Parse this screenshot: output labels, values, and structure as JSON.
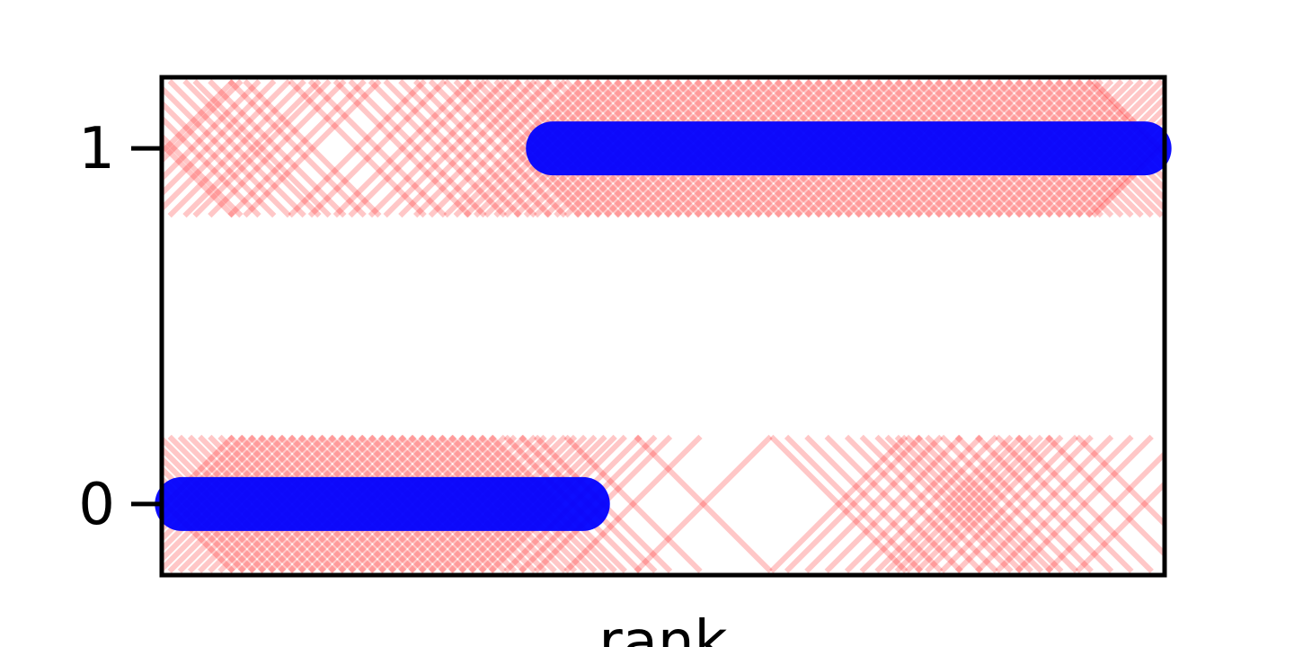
{
  "chart_data": {
    "type": "scatter",
    "title": "",
    "xlabel": "rank",
    "ylabel": "",
    "xlim": [
      0,
      1
    ],
    "ylim": [
      -0.2,
      1.2
    ],
    "yticks": [
      0,
      1
    ],
    "xticks": [],
    "grid": false,
    "legend": "none",
    "colors": {
      "samples": "#ff0000",
      "step": "#0000ff"
    },
    "series": [
      {
        "marker": "x",
        "points": [
          {
            "x": 0.004,
            "y": 1
          },
          {
            "x": 0.012,
            "y": 1
          },
          {
            "x": 0.03,
            "y": 1
          },
          {
            "x": 0.045,
            "y": 1
          },
          {
            "x": 0.06,
            "y": 1
          },
          {
            "x": 0.075,
            "y": 1
          },
          {
            "x": 0.09,
            "y": 1
          },
          {
            "x": 0.1,
            "y": 1
          },
          {
            "x": 0.115,
            "y": 1
          },
          {
            "x": 0.135,
            "y": 1
          },
          {
            "x": 0.15,
            "y": 1
          },
          {
            "x": 0.195,
            "y": 1
          },
          {
            "x": 0.215,
            "y": 1
          },
          {
            "x": 0.24,
            "y": 1
          },
          {
            "x": 0.255,
            "y": 1
          },
          {
            "x": 0.275,
            "y": 1
          },
          {
            "x": 0.29,
            "y": 1
          },
          {
            "x": 0.305,
            "y": 1
          },
          {
            "x": 0.32,
            "y": 1
          },
          {
            "x": 0.335,
            "y": 1
          },
          {
            "x": 0.35,
            "y": 1
          },
          {
            "x": 0.36,
            "y": 1
          },
          {
            "x": 0.37,
            "y": 1
          },
          {
            "x": 0.38,
            "y": 1
          },
          {
            "x": 0.39,
            "y": 1
          },
          {
            "x": 0.4,
            "y": 1
          },
          {
            "x": 0.41,
            "y": 1
          },
          {
            "x": 0.42,
            "y": 1
          },
          {
            "x": 0.43,
            "y": 1
          },
          {
            "x": 0.44,
            "y": 1
          },
          {
            "x": 0.45,
            "y": 1
          },
          {
            "x": 0.46,
            "y": 1
          },
          {
            "x": 0.47,
            "y": 1
          },
          {
            "x": 0.48,
            "y": 1
          },
          {
            "x": 0.49,
            "y": 1
          },
          {
            "x": 0.5,
            "y": 1
          },
          {
            "x": 0.51,
            "y": 1
          },
          {
            "x": 0.52,
            "y": 1
          },
          {
            "x": 0.53,
            "y": 1
          },
          {
            "x": 0.54,
            "y": 1
          },
          {
            "x": 0.55,
            "y": 1
          },
          {
            "x": 0.56,
            "y": 1
          },
          {
            "x": 0.57,
            "y": 1
          },
          {
            "x": 0.58,
            "y": 1
          },
          {
            "x": 0.59,
            "y": 1
          },
          {
            "x": 0.6,
            "y": 1
          },
          {
            "x": 0.61,
            "y": 1
          },
          {
            "x": 0.62,
            "y": 1
          },
          {
            "x": 0.63,
            "y": 1
          },
          {
            "x": 0.64,
            "y": 1
          },
          {
            "x": 0.65,
            "y": 1
          },
          {
            "x": 0.66,
            "y": 1
          },
          {
            "x": 0.67,
            "y": 1
          },
          {
            "x": 0.68,
            "y": 1
          },
          {
            "x": 0.69,
            "y": 1
          },
          {
            "x": 0.7,
            "y": 1
          },
          {
            "x": 0.71,
            "y": 1
          },
          {
            "x": 0.72,
            "y": 1
          },
          {
            "x": 0.73,
            "y": 1
          },
          {
            "x": 0.74,
            "y": 1
          },
          {
            "x": 0.75,
            "y": 1
          },
          {
            "x": 0.76,
            "y": 1
          },
          {
            "x": 0.77,
            "y": 1
          },
          {
            "x": 0.78,
            "y": 1
          },
          {
            "x": 0.79,
            "y": 1
          },
          {
            "x": 0.8,
            "y": 1
          },
          {
            "x": 0.81,
            "y": 1
          },
          {
            "x": 0.82,
            "y": 1
          },
          {
            "x": 0.83,
            "y": 1
          },
          {
            "x": 0.84,
            "y": 1
          },
          {
            "x": 0.85,
            "y": 1
          },
          {
            "x": 0.86,
            "y": 1
          },
          {
            "x": 0.87,
            "y": 1
          },
          {
            "x": 0.88,
            "y": 1
          },
          {
            "x": 0.89,
            "y": 1
          },
          {
            "x": 0.9,
            "y": 1
          },
          {
            "x": 0.91,
            "y": 1
          },
          {
            "x": 0.92,
            "y": 1
          },
          {
            "x": 0.93,
            "y": 1
          },
          {
            "x": 0.94,
            "y": 1
          },
          {
            "x": 0.95,
            "y": 1
          },
          {
            "x": 0.96,
            "y": 1
          },
          {
            "x": 0.97,
            "y": 1
          },
          {
            "x": 0.98,
            "y": 1
          },
          {
            "x": 0.99,
            "y": 1
          },
          {
            "x": 0.996,
            "y": 1
          },
          {
            "x": 0.004,
            "y": 0
          },
          {
            "x": 0.015,
            "y": 0
          },
          {
            "x": 0.025,
            "y": 0
          },
          {
            "x": 0.035,
            "y": 0
          },
          {
            "x": 0.045,
            "y": 0
          },
          {
            "x": 0.055,
            "y": 0
          },
          {
            "x": 0.065,
            "y": 0
          },
          {
            "x": 0.075,
            "y": 0
          },
          {
            "x": 0.085,
            "y": 0
          },
          {
            "x": 0.095,
            "y": 0
          },
          {
            "x": 0.105,
            "y": 0
          },
          {
            "x": 0.115,
            "y": 0
          },
          {
            "x": 0.125,
            "y": 0
          },
          {
            "x": 0.135,
            "y": 0
          },
          {
            "x": 0.145,
            "y": 0
          },
          {
            "x": 0.155,
            "y": 0
          },
          {
            "x": 0.165,
            "y": 0
          },
          {
            "x": 0.175,
            "y": 0
          },
          {
            "x": 0.185,
            "y": 0
          },
          {
            "x": 0.195,
            "y": 0
          },
          {
            "x": 0.205,
            "y": 0
          },
          {
            "x": 0.215,
            "y": 0
          },
          {
            "x": 0.225,
            "y": 0
          },
          {
            "x": 0.235,
            "y": 0
          },
          {
            "x": 0.245,
            "y": 0
          },
          {
            "x": 0.255,
            "y": 0
          },
          {
            "x": 0.265,
            "y": 0
          },
          {
            "x": 0.275,
            "y": 0
          },
          {
            "x": 0.285,
            "y": 0
          },
          {
            "x": 0.295,
            "y": 0
          },
          {
            "x": 0.305,
            "y": 0
          },
          {
            "x": 0.315,
            "y": 0
          },
          {
            "x": 0.325,
            "y": 0
          },
          {
            "x": 0.335,
            "y": 0
          },
          {
            "x": 0.345,
            "y": 0
          },
          {
            "x": 0.355,
            "y": 0
          },
          {
            "x": 0.365,
            "y": 0
          },
          {
            "x": 0.375,
            "y": 0
          },
          {
            "x": 0.385,
            "y": 0
          },
          {
            "x": 0.395,
            "y": 0
          },
          {
            "x": 0.41,
            "y": 0
          },
          {
            "x": 0.425,
            "y": 0
          },
          {
            "x": 0.44,
            "y": 0
          },
          {
            "x": 0.47,
            "y": 0
          },
          {
            "x": 0.54,
            "y": 0
          },
          {
            "x": 0.675,
            "y": 0
          },
          {
            "x": 0.69,
            "y": 0
          },
          {
            "x": 0.71,
            "y": 0
          },
          {
            "x": 0.73,
            "y": 0
          },
          {
            "x": 0.75,
            "y": 0
          },
          {
            "x": 0.765,
            "y": 0
          },
          {
            "x": 0.78,
            "y": 0
          },
          {
            "x": 0.79,
            "y": 0
          },
          {
            "x": 0.8,
            "y": 0
          },
          {
            "x": 0.81,
            "y": 0
          },
          {
            "x": 0.82,
            "y": 0
          },
          {
            "x": 0.83,
            "y": 0
          },
          {
            "x": 0.845,
            "y": 0
          },
          {
            "x": 0.86,
            "y": 0
          },
          {
            "x": 0.88,
            "y": 0
          },
          {
            "x": 0.9,
            "y": 0
          },
          {
            "x": 0.92,
            "y": 0
          },
          {
            "x": 0.95,
            "y": 0
          },
          {
            "x": 0.98,
            "y": 0
          }
        ]
      },
      {
        "marker": "line",
        "segments": [
          {
            "x": [
              0.02,
              0.42
            ],
            "y": 0
          },
          {
            "x": [
              0.39,
              0.98
            ],
            "y": 1
          }
        ]
      }
    ]
  }
}
